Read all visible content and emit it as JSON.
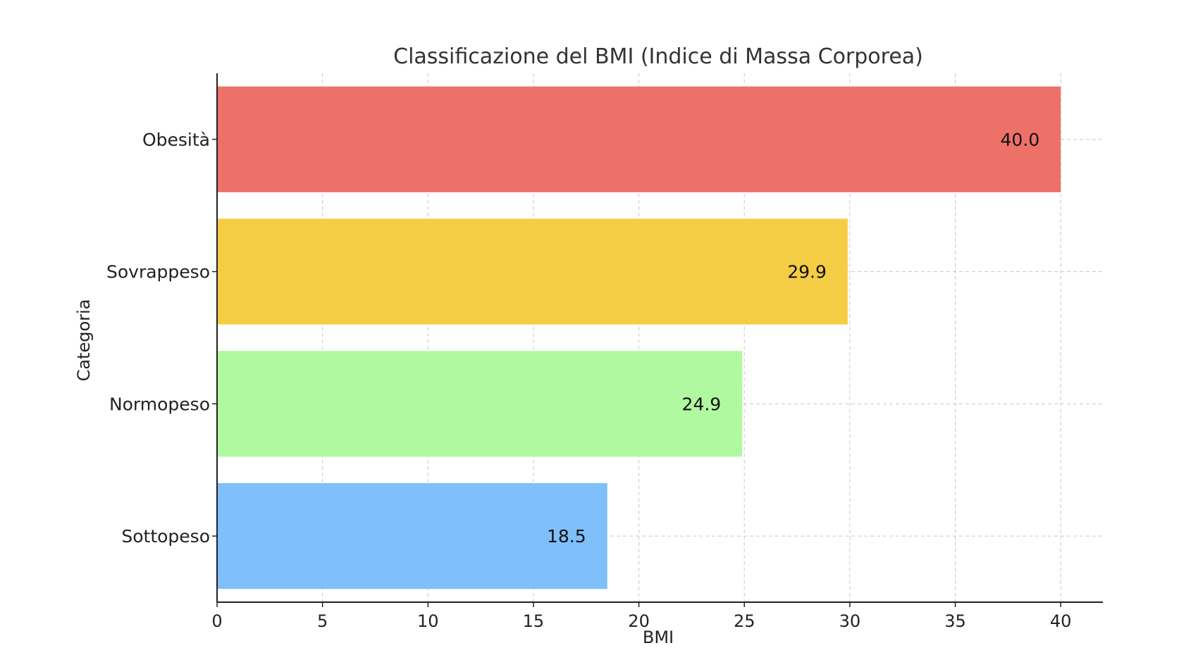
{
  "chart_data": {
    "type": "bar",
    "orientation": "horizontal",
    "title": "Classificazione del BMI (Indice di Massa Corporea)",
    "xlabel": "BMI",
    "ylabel": "Categoria",
    "categories": [
      "Sottopeso",
      "Normopeso",
      "Sovrappeso",
      "Obesità"
    ],
    "values": [
      18.5,
      24.9,
      29.9,
      40.0
    ],
    "value_labels": [
      "18.5",
      "24.9",
      "29.9",
      "40.0"
    ],
    "colors": [
      "#7fbffa",
      "#b0f9a0",
      "#f5cd45",
      "#ee7169"
    ],
    "xlim": [
      0,
      42
    ],
    "xticks": [
      0,
      5,
      10,
      15,
      20,
      25,
      30,
      35,
      40
    ],
    "grid": true,
    "legend": "none"
  }
}
